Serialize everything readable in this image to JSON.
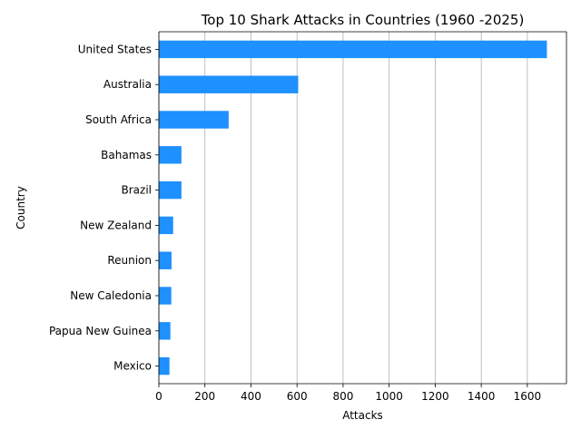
{
  "chart_data": {
    "type": "bar",
    "orientation": "horizontal",
    "title": "Top 10 Shark Attacks in Countries (1960 -2025)",
    "xlabel": "Attacks",
    "ylabel": "Country",
    "categories": [
      "United States",
      "Australia",
      "South Africa",
      "Bahamas",
      "Brazil",
      "New Zealand",
      "Reunion",
      "New Caledonia",
      "Papua New Guinea",
      "Mexico"
    ],
    "values": [
      1685,
      605,
      303,
      98,
      98,
      62,
      55,
      54,
      50,
      46
    ],
    "xlim": [
      0,
      1770
    ],
    "xticks": [
      0,
      200,
      400,
      600,
      800,
      1000,
      1200,
      1400,
      1600
    ],
    "grid": "x",
    "bar_color": "#1e90ff"
  }
}
